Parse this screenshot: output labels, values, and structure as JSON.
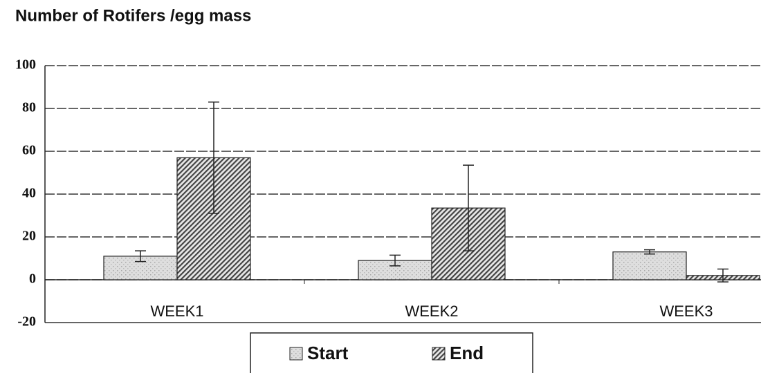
{
  "chart_data": {
    "type": "bar",
    "title": "Number of Rotifers /egg mass",
    "categories": [
      "WEEK1",
      "WEEK2",
      "WEEK3"
    ],
    "series": [
      {
        "name": "Start",
        "color": "#d6d6d6",
        "values": [
          11,
          9,
          13
        ],
        "errors": [
          2.5,
          2.5,
          1
        ]
      },
      {
        "name": "End",
        "color": "#444444",
        "values": [
          57,
          33.5,
          2
        ],
        "errors": [
          26,
          20,
          3
        ]
      }
    ],
    "ylim": [
      -20,
      100
    ],
    "yticks": [
      -20,
      0,
      20,
      40,
      60,
      80,
      100
    ],
    "grid": true,
    "legend": "bottom"
  }
}
